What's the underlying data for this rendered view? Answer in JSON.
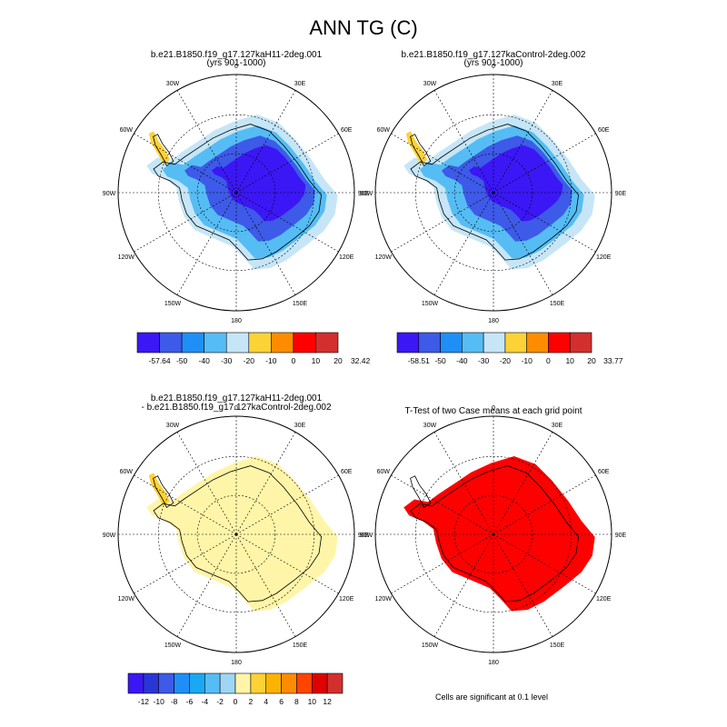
{
  "title": "ANN TG (C)",
  "panels": [
    {
      "id": "p1",
      "title_line1": "b.e21.B1850.f19_g17.127kaH11-2deg.001",
      "title_line2": "(yrs 901-1000)",
      "lat_labels": [
        "0",
        "30E",
        "60E",
        "90E",
        "120E",
        "150E",
        "180",
        "150W",
        "120W",
        "90W",
        "60W",
        "30W"
      ]
    },
    {
      "id": "p2",
      "title_line1": "b.e21.B1850.f19_g17.127kaControl-2deg.002",
      "title_line2": "(yrs 901-1000)",
      "lat_labels": [
        "0",
        "30E",
        "60E",
        "90E",
        "120E",
        "150E",
        "180",
        "150W",
        "120W",
        "90W",
        "60W",
        "30W"
      ]
    },
    {
      "id": "p3",
      "title_line1": "b.e21.B1850.f19_g17.127kaH11-2deg.001",
      "title_line2": "- b.e21.B1850.f19_g17.127kaControl-2deg.002",
      "lat_labels": [
        "0",
        "30E",
        "60E",
        "90E",
        "120E",
        "150E",
        "180",
        "150W",
        "120W",
        "90W",
        "60W",
        "30W"
      ]
    },
    {
      "id": "p4",
      "title_line1": "T-Test of two Case means at each grid point",
      "title_line2": "",
      "lat_labels": [
        "0",
        "30E",
        "60E",
        "90E",
        "120E",
        "150E",
        "180",
        "150W",
        "120W",
        "90W",
        "60W",
        "30W"
      ]
    }
  ],
  "colorbars": [
    {
      "id": "cb1",
      "labels": [
        "-57.64",
        "-50",
        "-40",
        "-30",
        "-20",
        "-10",
        "0",
        "10",
        "20",
        "32.42"
      ],
      "colors": [
        "#3b17f5",
        "#3d5ae8",
        "#1f8ff7",
        "#55bdf4",
        "#c6e6f7",
        "#fdd236",
        "#ff8c00",
        "#ff0000",
        "#d32f2f"
      ]
    },
    {
      "id": "cb2",
      "labels": [
        "-58.51",
        "-50",
        "-40",
        "-30",
        "-20",
        "-10",
        "0",
        "10",
        "20",
        "33.77"
      ],
      "colors": [
        "#3b17f5",
        "#3d5ae8",
        "#1f8ff7",
        "#55bdf4",
        "#c6e6f7",
        "#fdd236",
        "#ff8c00",
        "#ff0000",
        "#d32f2f"
      ]
    },
    {
      "id": "cb3",
      "labels": [
        "-12",
        "-10",
        "-8",
        "-6",
        "-4",
        "-2",
        "0",
        "2",
        "4",
        "6",
        "8",
        "10",
        "12"
      ],
      "colors": [
        "#3b17f5",
        "#2a35d6",
        "#3d5ae8",
        "#1f8ff7",
        "#1aa8f2",
        "#55bdf4",
        "#9ed6f4",
        "#fff5a8",
        "#fdd236",
        "#fdb400",
        "#ff8c00",
        "#ff4400",
        "#e00000",
        "#d32f2f"
      ]
    }
  ],
  "note": "Cells are significant at 0.1 level",
  "map_fill": {
    "p1": {
      "outer": "#c6e6f7",
      "mid": "#55bdf4",
      "inner": "#3d5ae8",
      "core": "#3b17f5",
      "peninsula": "#fdd236"
    },
    "p2": {
      "outer": "#c6e6f7",
      "mid": "#55bdf4",
      "inner": "#3d5ae8",
      "core": "#3b17f5",
      "peninsula": "#fdd236"
    },
    "p3": {
      "outer": "#fff5a8",
      "peninsula": "#fdd236"
    },
    "p4": {
      "outer": "#ff0000"
    }
  }
}
